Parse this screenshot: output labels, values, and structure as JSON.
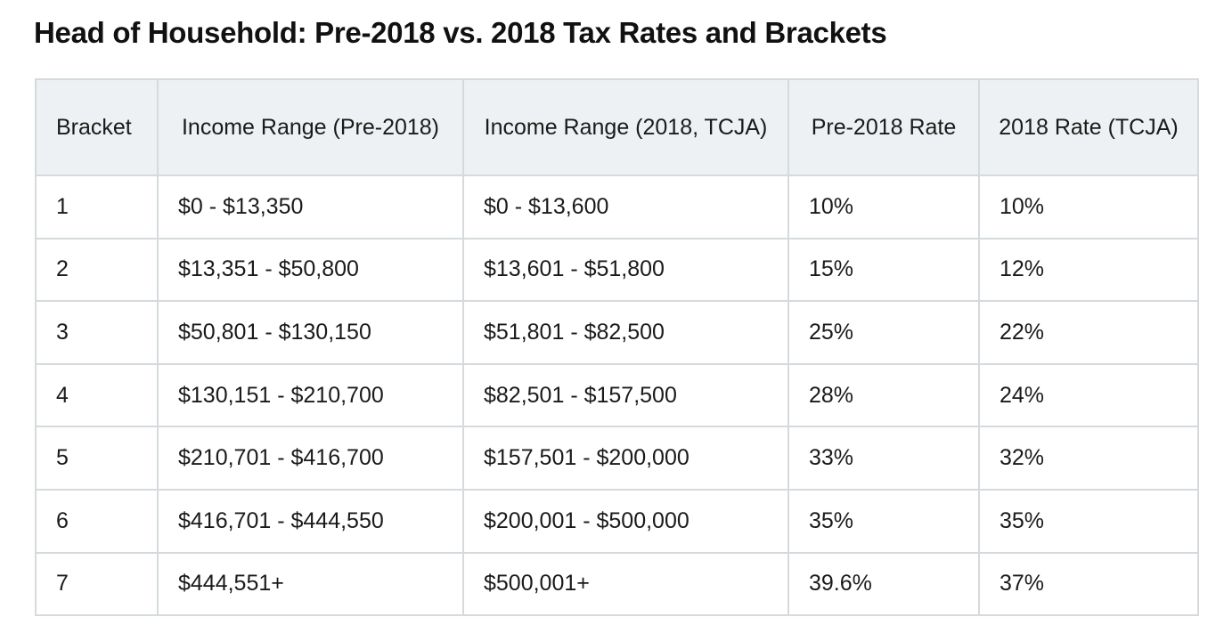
{
  "title": "Head of Household: Pre-2018 vs. 2018 Tax Rates and Brackets",
  "table": {
    "headers": [
      "Bracket",
      "Income Range (Pre-2018)",
      "Income Range (2018, TCJA)",
      "Pre-2018 Rate",
      "2018 Rate (TCJA)"
    ],
    "rows": [
      [
        "1",
        "$0 - $13,350",
        "$0 - $13,600",
        "10%",
        "10%"
      ],
      [
        "2",
        "$13,351 - $50,800",
        "$13,601 - $51,800",
        "15%",
        "12%"
      ],
      [
        "3",
        "$50,801 - $130,150",
        "$51,801 - $82,500",
        "25%",
        "22%"
      ],
      [
        "4",
        "$130,151 - $210,700",
        "$82,501 - $157,500",
        "28%",
        "24%"
      ],
      [
        "5",
        "$210,701 - $416,700",
        "$157,501 - $200,000",
        "33%",
        "32%"
      ],
      [
        "6",
        "$416,701 - $444,550",
        "$200,001 - $500,000",
        "35%",
        "35%"
      ],
      [
        "7",
        "$444,551+",
        "$500,001+",
        "39.6%",
        "37%"
      ]
    ]
  },
  "colors": {
    "header_background": "#eef1f3",
    "border": "#d5dadd",
    "text": "#1a1a1a"
  }
}
